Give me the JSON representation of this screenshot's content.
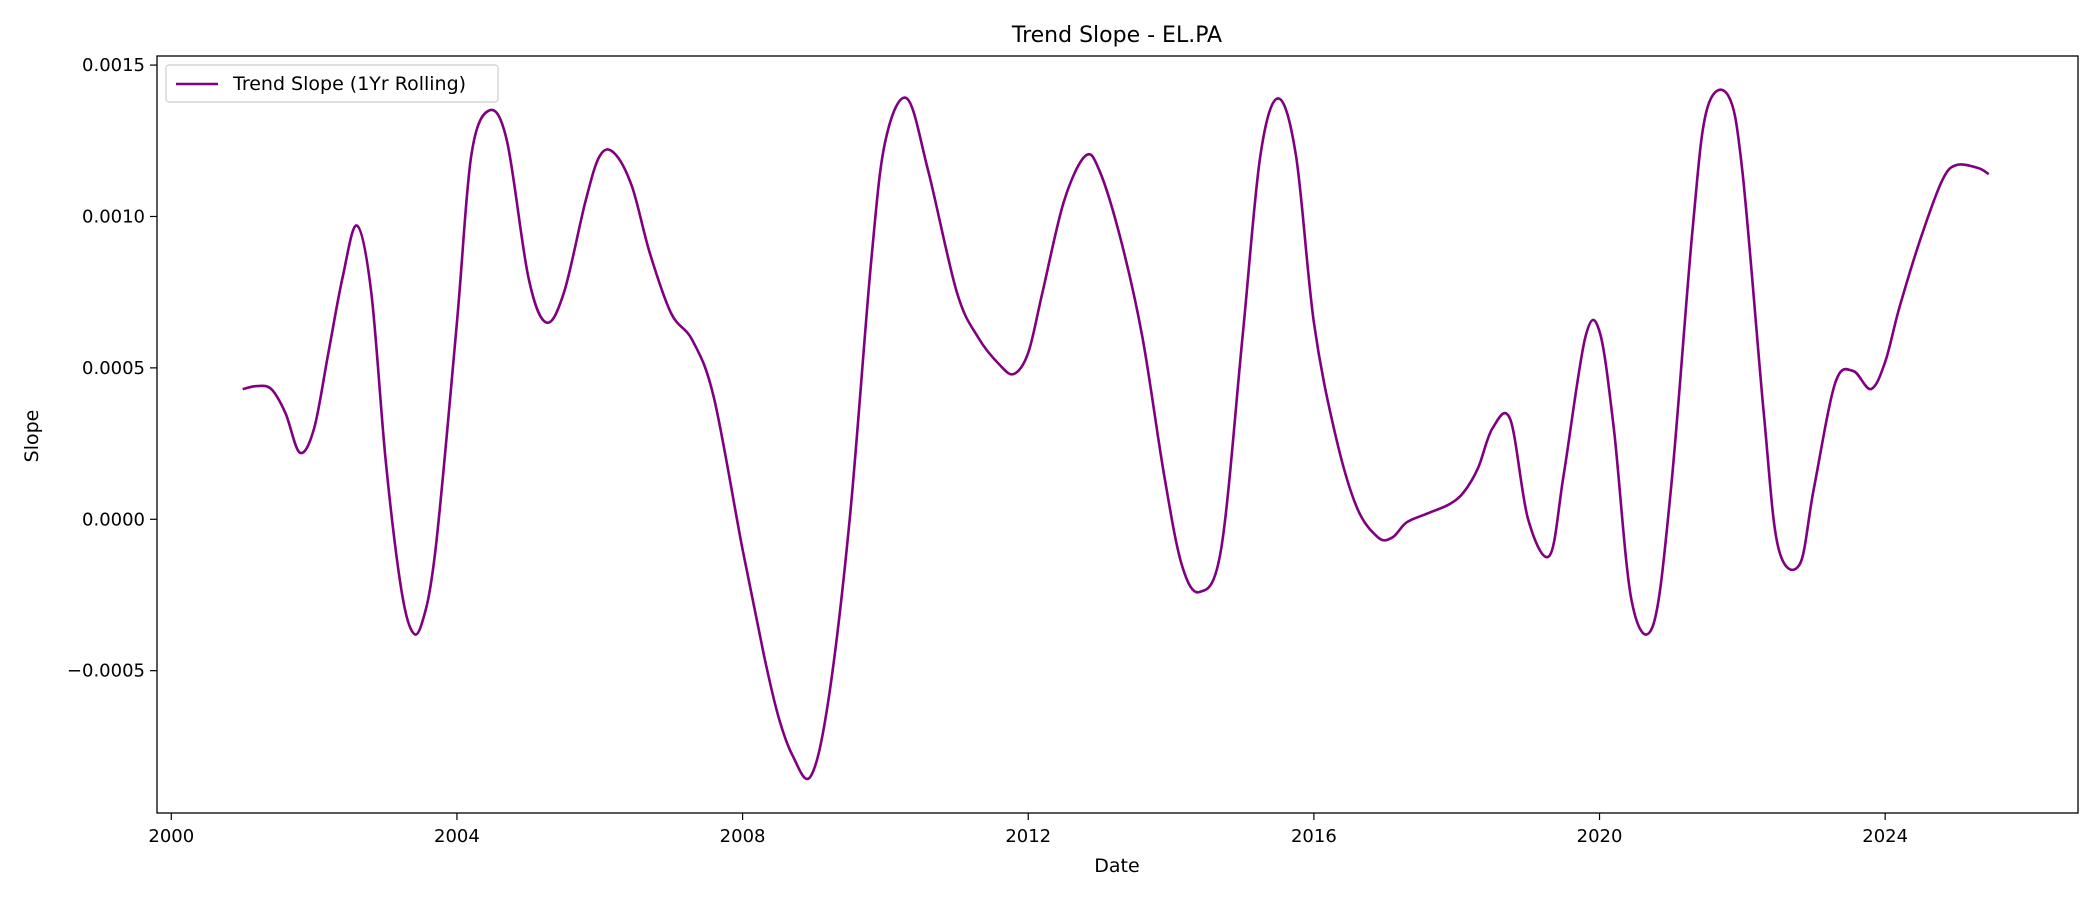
{
  "chart_data": {
    "type": "line",
    "title": "Trend Slope - EL.PA",
    "xlabel": "Date",
    "ylabel": "Slope",
    "x_ticks": [
      2000,
      2004,
      2008,
      2012,
      2016,
      2020,
      2024
    ],
    "x_tick_labels": [
      "2000",
      "2004",
      "2008",
      "2012",
      "2016",
      "2020",
      "2024"
    ],
    "y_ticks": [
      -0.0005,
      0.0,
      0.0005,
      0.001,
      0.0015
    ],
    "y_tick_labels": [
      "−0.0005",
      "0.0000",
      "0.0005",
      "0.0010",
      "0.0015"
    ],
    "xlim": [
      1999.8,
      2026.7
    ],
    "ylim": [
      -0.00097,
      0.00153
    ],
    "grid": false,
    "legend": {
      "position": "top-left"
    },
    "series": [
      {
        "name": "Trend Slope (1Yr Rolling)",
        "color": "#800080",
        "x": [
          2001.0,
          2001.2,
          2001.4,
          2001.6,
          2001.8,
          2002.0,
          2002.2,
          2002.4,
          2002.6,
          2002.8,
          2003.0,
          2003.2,
          2003.35,
          2003.5,
          2003.7,
          2004.0,
          2004.2,
          2004.45,
          2004.7,
          2005.0,
          2005.25,
          2005.5,
          2005.8,
          2006.0,
          2006.2,
          2006.45,
          2006.7,
          2007.0,
          2007.3,
          2007.6,
          2008.0,
          2008.3,
          2008.5,
          2008.7,
          2008.95,
          2009.2,
          2009.5,
          2009.8,
          2010.0,
          2010.3,
          2010.6,
          2011.0,
          2011.3,
          2011.6,
          2011.8,
          2012.0,
          2012.2,
          2012.5,
          2012.8,
          2013.0,
          2013.3,
          2013.6,
          2013.9,
          2014.15,
          2014.4,
          2014.7,
          2015.0,
          2015.25,
          2015.5,
          2015.75,
          2016.0,
          2016.3,
          2016.6,
          2016.9,
          2017.1,
          2017.3,
          2017.6,
          2017.9,
          2018.1,
          2018.3,
          2018.5,
          2018.75,
          2019.0,
          2019.3,
          2019.5,
          2019.8,
          2020.0,
          2020.2,
          2020.45,
          2020.75,
          2021.0,
          2021.3,
          2021.5,
          2021.8,
          2022.0,
          2022.3,
          2022.5,
          2022.8,
          2023.0,
          2023.3,
          2023.55,
          2023.8,
          2024.0,
          2024.2,
          2024.5,
          2024.8,
          2025.0,
          2025.3,
          2025.45
        ],
        "y": [
          0.00043,
          0.00044,
          0.00043,
          0.00035,
          0.00022,
          0.0003,
          0.00055,
          0.0008,
          0.00097,
          0.00075,
          0.0002,
          -0.0002,
          -0.00036,
          -0.00035,
          -0.0001,
          0.00065,
          0.0012,
          0.00135,
          0.00125,
          0.0008,
          0.00065,
          0.00075,
          0.00105,
          0.0012,
          0.00121,
          0.0011,
          0.00088,
          0.00068,
          0.00059,
          0.0004,
          -0.0001,
          -0.00045,
          -0.00065,
          -0.00078,
          -0.00085,
          -0.0006,
          0.0,
          0.00085,
          0.00125,
          0.00139,
          0.00115,
          0.00075,
          0.0006,
          0.00051,
          0.00048,
          0.00055,
          0.00075,
          0.00105,
          0.0012,
          0.00115,
          0.00092,
          0.0006,
          0.00015,
          -0.00015,
          -0.00024,
          -0.0001,
          0.0006,
          0.0012,
          0.00139,
          0.0012,
          0.00065,
          0.00028,
          4e-05,
          -6e-05,
          -6e-05,
          -1e-05,
          2e-05,
          5e-05,
          9e-05,
          0.00017,
          0.0003,
          0.00033,
          0.0,
          -0.00012,
          0.00015,
          0.0006,
          0.00062,
          0.0003,
          -0.00027,
          -0.00035,
          0.0001,
          0.00095,
          0.00135,
          0.0014,
          0.00115,
          0.00035,
          -9e-05,
          -0.00015,
          0.0001,
          0.00045,
          0.00049,
          0.00043,
          0.00052,
          0.0007,
          0.00093,
          0.00112,
          0.00117,
          0.00116,
          0.00114
        ]
      }
    ]
  }
}
